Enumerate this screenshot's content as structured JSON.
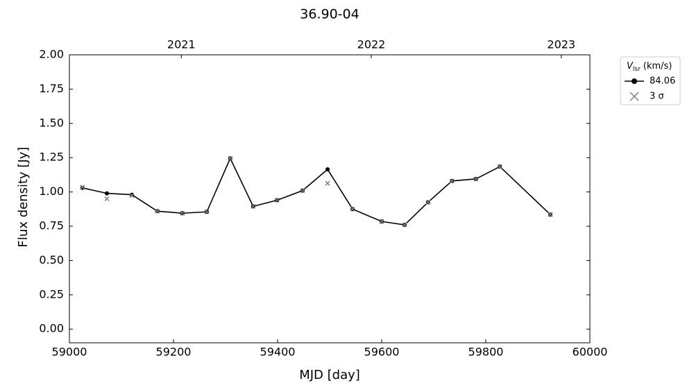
{
  "chart_data": {
    "type": "line",
    "title": "36.90-04",
    "xlabel": "MJD [day]",
    "ylabel": "Flux density [Jy]",
    "legend_title": {
      "symbol": "V",
      "subscript": "lsr",
      "unit": "(km/s)"
    },
    "legend": "outside upper right",
    "x": [
      59025,
      59072,
      59120,
      59169,
      59217,
      59264,
      59309,
      59353,
      59399,
      59448,
      59496,
      59544,
      59600,
      59644,
      59689,
      59735,
      59781,
      59827,
      59924
    ],
    "series": [
      {
        "name": "84.06",
        "color": "#000000",
        "marker": "circle",
        "values": [
          1.03,
          0.99,
          0.98,
          0.86,
          0.845,
          0.855,
          1.245,
          0.895,
          0.94,
          1.01,
          1.165,
          0.875,
          0.785,
          0.76,
          0.925,
          1.08,
          1.095,
          1.185,
          0.835
        ]
      },
      {
        "name": "3 σ",
        "color": "#808080",
        "marker": "x",
        "values": [
          1.035,
          0.95,
          0.975,
          0.86,
          0.845,
          0.855,
          1.245,
          0.895,
          0.94,
          1.01,
          1.063,
          0.875,
          0.785,
          0.76,
          0.925,
          1.08,
          1.095,
          1.185,
          0.835
        ]
      }
    ],
    "xlim": [
      59000,
      60000
    ],
    "xticks": [
      59000,
      59200,
      59400,
      59600,
      59800,
      60000
    ],
    "x2ticks": [
      {
        "value": 59215,
        "label": "2021"
      },
      {
        "value": 59580,
        "label": "2022"
      },
      {
        "value": 59945,
        "label": "2023"
      }
    ],
    "ylim": [
      -0.1,
      2.0
    ],
    "yticks": [
      {
        "value": 0,
        "label": "0.00"
      },
      0.25,
      {
        "value": 0.5,
        "label": "0.50"
      },
      0.75,
      {
        "value": 1,
        "label": "1.00"
      },
      1.25,
      {
        "value": 1.5,
        "label": "1.50"
      },
      1.75,
      {
        "value": 2,
        "label": "2.00"
      }
    ],
    "grid": false
  }
}
